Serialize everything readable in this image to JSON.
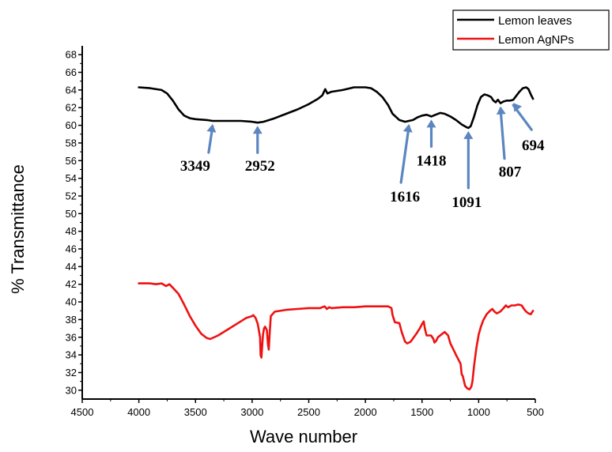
{
  "chart_data": {
    "type": "line",
    "xlabel": "Wave number",
    "ylabel": "% Transmittance",
    "xlim": [
      4500,
      500
    ],
    "ylim": [
      29,
      69
    ],
    "x_reversed": true,
    "x_ticks": [
      4500,
      4000,
      3500,
      3000,
      2500,
      2000,
      1500,
      1000,
      500
    ],
    "y_ticks": [
      30,
      32,
      34,
      36,
      38,
      40,
      42,
      44,
      46,
      48,
      50,
      52,
      54,
      56,
      58,
      60,
      62,
      64,
      66,
      68
    ],
    "legend_position": "top-right",
    "series": [
      {
        "name": "Lemon leaves",
        "color": "#000000",
        "points": [
          [
            4000,
            64.3
          ],
          [
            3900,
            64.2
          ],
          [
            3800,
            64.0
          ],
          [
            3750,
            63.6
          ],
          [
            3700,
            62.8
          ],
          [
            3650,
            61.8
          ],
          [
            3600,
            61.1
          ],
          [
            3550,
            60.8
          ],
          [
            3500,
            60.7
          ],
          [
            3400,
            60.6
          ],
          [
            3349,
            60.5
          ],
          [
            3300,
            60.5
          ],
          [
            3200,
            60.5
          ],
          [
            3100,
            60.5
          ],
          [
            3000,
            60.4
          ],
          [
            2952,
            60.3
          ],
          [
            2900,
            60.4
          ],
          [
            2850,
            60.6
          ],
          [
            2800,
            60.8
          ],
          [
            2700,
            61.3
          ],
          [
            2600,
            61.8
          ],
          [
            2500,
            62.4
          ],
          [
            2420,
            63.0
          ],
          [
            2380,
            63.4
          ],
          [
            2355,
            64.1
          ],
          [
            2335,
            63.6
          ],
          [
            2300,
            63.8
          ],
          [
            2200,
            64.0
          ],
          [
            2100,
            64.3
          ],
          [
            2000,
            64.3
          ],
          [
            1950,
            64.2
          ],
          [
            1900,
            63.8
          ],
          [
            1850,
            63.2
          ],
          [
            1800,
            62.3
          ],
          [
            1760,
            61.3
          ],
          [
            1700,
            60.6
          ],
          [
            1650,
            60.4
          ],
          [
            1616,
            60.5
          ],
          [
            1580,
            60.6
          ],
          [
            1540,
            60.9
          ],
          [
            1500,
            61.1
          ],
          [
            1460,
            61.2
          ],
          [
            1418,
            61.0
          ],
          [
            1380,
            61.2
          ],
          [
            1340,
            61.4
          ],
          [
            1300,
            61.3
          ],
          [
            1250,
            61.0
          ],
          [
            1200,
            60.6
          ],
          [
            1150,
            60.1
          ],
          [
            1110,
            59.8
          ],
          [
            1091,
            59.7
          ],
          [
            1070,
            59.9
          ],
          [
            1040,
            61.0
          ],
          [
            1010,
            62.3
          ],
          [
            980,
            63.2
          ],
          [
            950,
            63.5
          ],
          [
            920,
            63.4
          ],
          [
            890,
            63.2
          ],
          [
            870,
            62.8
          ],
          [
            850,
            62.6
          ],
          [
            830,
            62.9
          ],
          [
            807,
            62.5
          ],
          [
            780,
            62.7
          ],
          [
            750,
            62.8
          ],
          [
            720,
            62.8
          ],
          [
            694,
            62.9
          ],
          [
            670,
            63.3
          ],
          [
            640,
            63.8
          ],
          [
            610,
            64.2
          ],
          [
            580,
            64.3
          ],
          [
            560,
            64.1
          ],
          [
            540,
            63.5
          ],
          [
            520,
            63.0
          ]
        ]
      },
      {
        "name": "Lemon AgNPs",
        "color": "#ee1111",
        "points": [
          [
            4000,
            42.1
          ],
          [
            3900,
            42.1
          ],
          [
            3850,
            42.0
          ],
          [
            3800,
            42.1
          ],
          [
            3760,
            41.8
          ],
          [
            3730,
            42.0
          ],
          [
            3700,
            41.6
          ],
          [
            3650,
            40.9
          ],
          [
            3600,
            39.7
          ],
          [
            3550,
            38.4
          ],
          [
            3500,
            37.3
          ],
          [
            3450,
            36.4
          ],
          [
            3400,
            35.9
          ],
          [
            3370,
            35.8
          ],
          [
            3300,
            36.2
          ],
          [
            3200,
            37.0
          ],
          [
            3100,
            37.8
          ],
          [
            3050,
            38.2
          ],
          [
            3000,
            38.4
          ],
          [
            2990,
            38.5
          ],
          [
            2970,
            38.2
          ],
          [
            2950,
            37.5
          ],
          [
            2930,
            36.0
          ],
          [
            2925,
            34.0
          ],
          [
            2918,
            33.7
          ],
          [
            2905,
            36.2
          ],
          [
            2895,
            37.0
          ],
          [
            2885,
            37.2
          ],
          [
            2870,
            36.8
          ],
          [
            2860,
            35.2
          ],
          [
            2853,
            34.6
          ],
          [
            2845,
            36.5
          ],
          [
            2835,
            38.4
          ],
          [
            2800,
            38.9
          ],
          [
            2700,
            39.1
          ],
          [
            2600,
            39.2
          ],
          [
            2500,
            39.3
          ],
          [
            2400,
            39.3
          ],
          [
            2360,
            39.5
          ],
          [
            2340,
            39.2
          ],
          [
            2320,
            39.4
          ],
          [
            2300,
            39.3
          ],
          [
            2200,
            39.4
          ],
          [
            2100,
            39.4
          ],
          [
            2000,
            39.5
          ],
          [
            1900,
            39.5
          ],
          [
            1800,
            39.5
          ],
          [
            1770,
            39.3
          ],
          [
            1760,
            38.5
          ],
          [
            1740,
            37.7
          ],
          [
            1700,
            37.6
          ],
          [
            1680,
            36.6
          ],
          [
            1650,
            35.5
          ],
          [
            1630,
            35.3
          ],
          [
            1600,
            35.5
          ],
          [
            1550,
            36.4
          ],
          [
            1520,
            37.0
          ],
          [
            1500,
            37.5
          ],
          [
            1485,
            37.8
          ],
          [
            1475,
            37.0
          ],
          [
            1460,
            36.2
          ],
          [
            1420,
            36.2
          ],
          [
            1400,
            35.8
          ],
          [
            1390,
            35.4
          ],
          [
            1375,
            35.6
          ],
          [
            1360,
            36.0
          ],
          [
            1330,
            36.3
          ],
          [
            1300,
            36.6
          ],
          [
            1270,
            36.2
          ],
          [
            1250,
            35.3
          ],
          [
            1230,
            34.8
          ],
          [
            1200,
            34.0
          ],
          [
            1180,
            33.5
          ],
          [
            1160,
            33.0
          ],
          [
            1150,
            31.8
          ],
          [
            1140,
            31.6
          ],
          [
            1120,
            30.5
          ],
          [
            1100,
            30.2
          ],
          [
            1080,
            30.1
          ],
          [
            1065,
            30.4
          ],
          [
            1055,
            31.0
          ],
          [
            1040,
            32.8
          ],
          [
            1020,
            34.8
          ],
          [
            1000,
            36.3
          ],
          [
            980,
            37.2
          ],
          [
            960,
            37.9
          ],
          [
            930,
            38.6
          ],
          [
            900,
            39.0
          ],
          [
            880,
            39.2
          ],
          [
            860,
            38.9
          ],
          [
            840,
            38.7
          ],
          [
            810,
            38.9
          ],
          [
            780,
            39.3
          ],
          [
            760,
            39.6
          ],
          [
            740,
            39.4
          ],
          [
            710,
            39.6
          ],
          [
            680,
            39.6
          ],
          [
            650,
            39.7
          ],
          [
            620,
            39.6
          ],
          [
            600,
            39.2
          ],
          [
            580,
            38.9
          ],
          [
            560,
            38.7
          ],
          [
            540,
            38.6
          ],
          [
            520,
            39.0
          ]
        ]
      }
    ],
    "annotations": [
      {
        "label": "3349",
        "x": 3349,
        "y": 60.5
      },
      {
        "label": "2952",
        "x": 2952,
        "y": 60.3
      },
      {
        "label": "1616",
        "x": 1616,
        "y": 60.5
      },
      {
        "label": "1418",
        "x": 1418,
        "y": 61.0
      },
      {
        "label": "1091",
        "x": 1091,
        "y": 59.7
      },
      {
        "label": "807",
        "x": 807,
        "y": 62.5
      },
      {
        "label": "694",
        "x": 694,
        "y": 62.9
      }
    ],
    "annotation_arrow_color": "#5b86c0"
  }
}
